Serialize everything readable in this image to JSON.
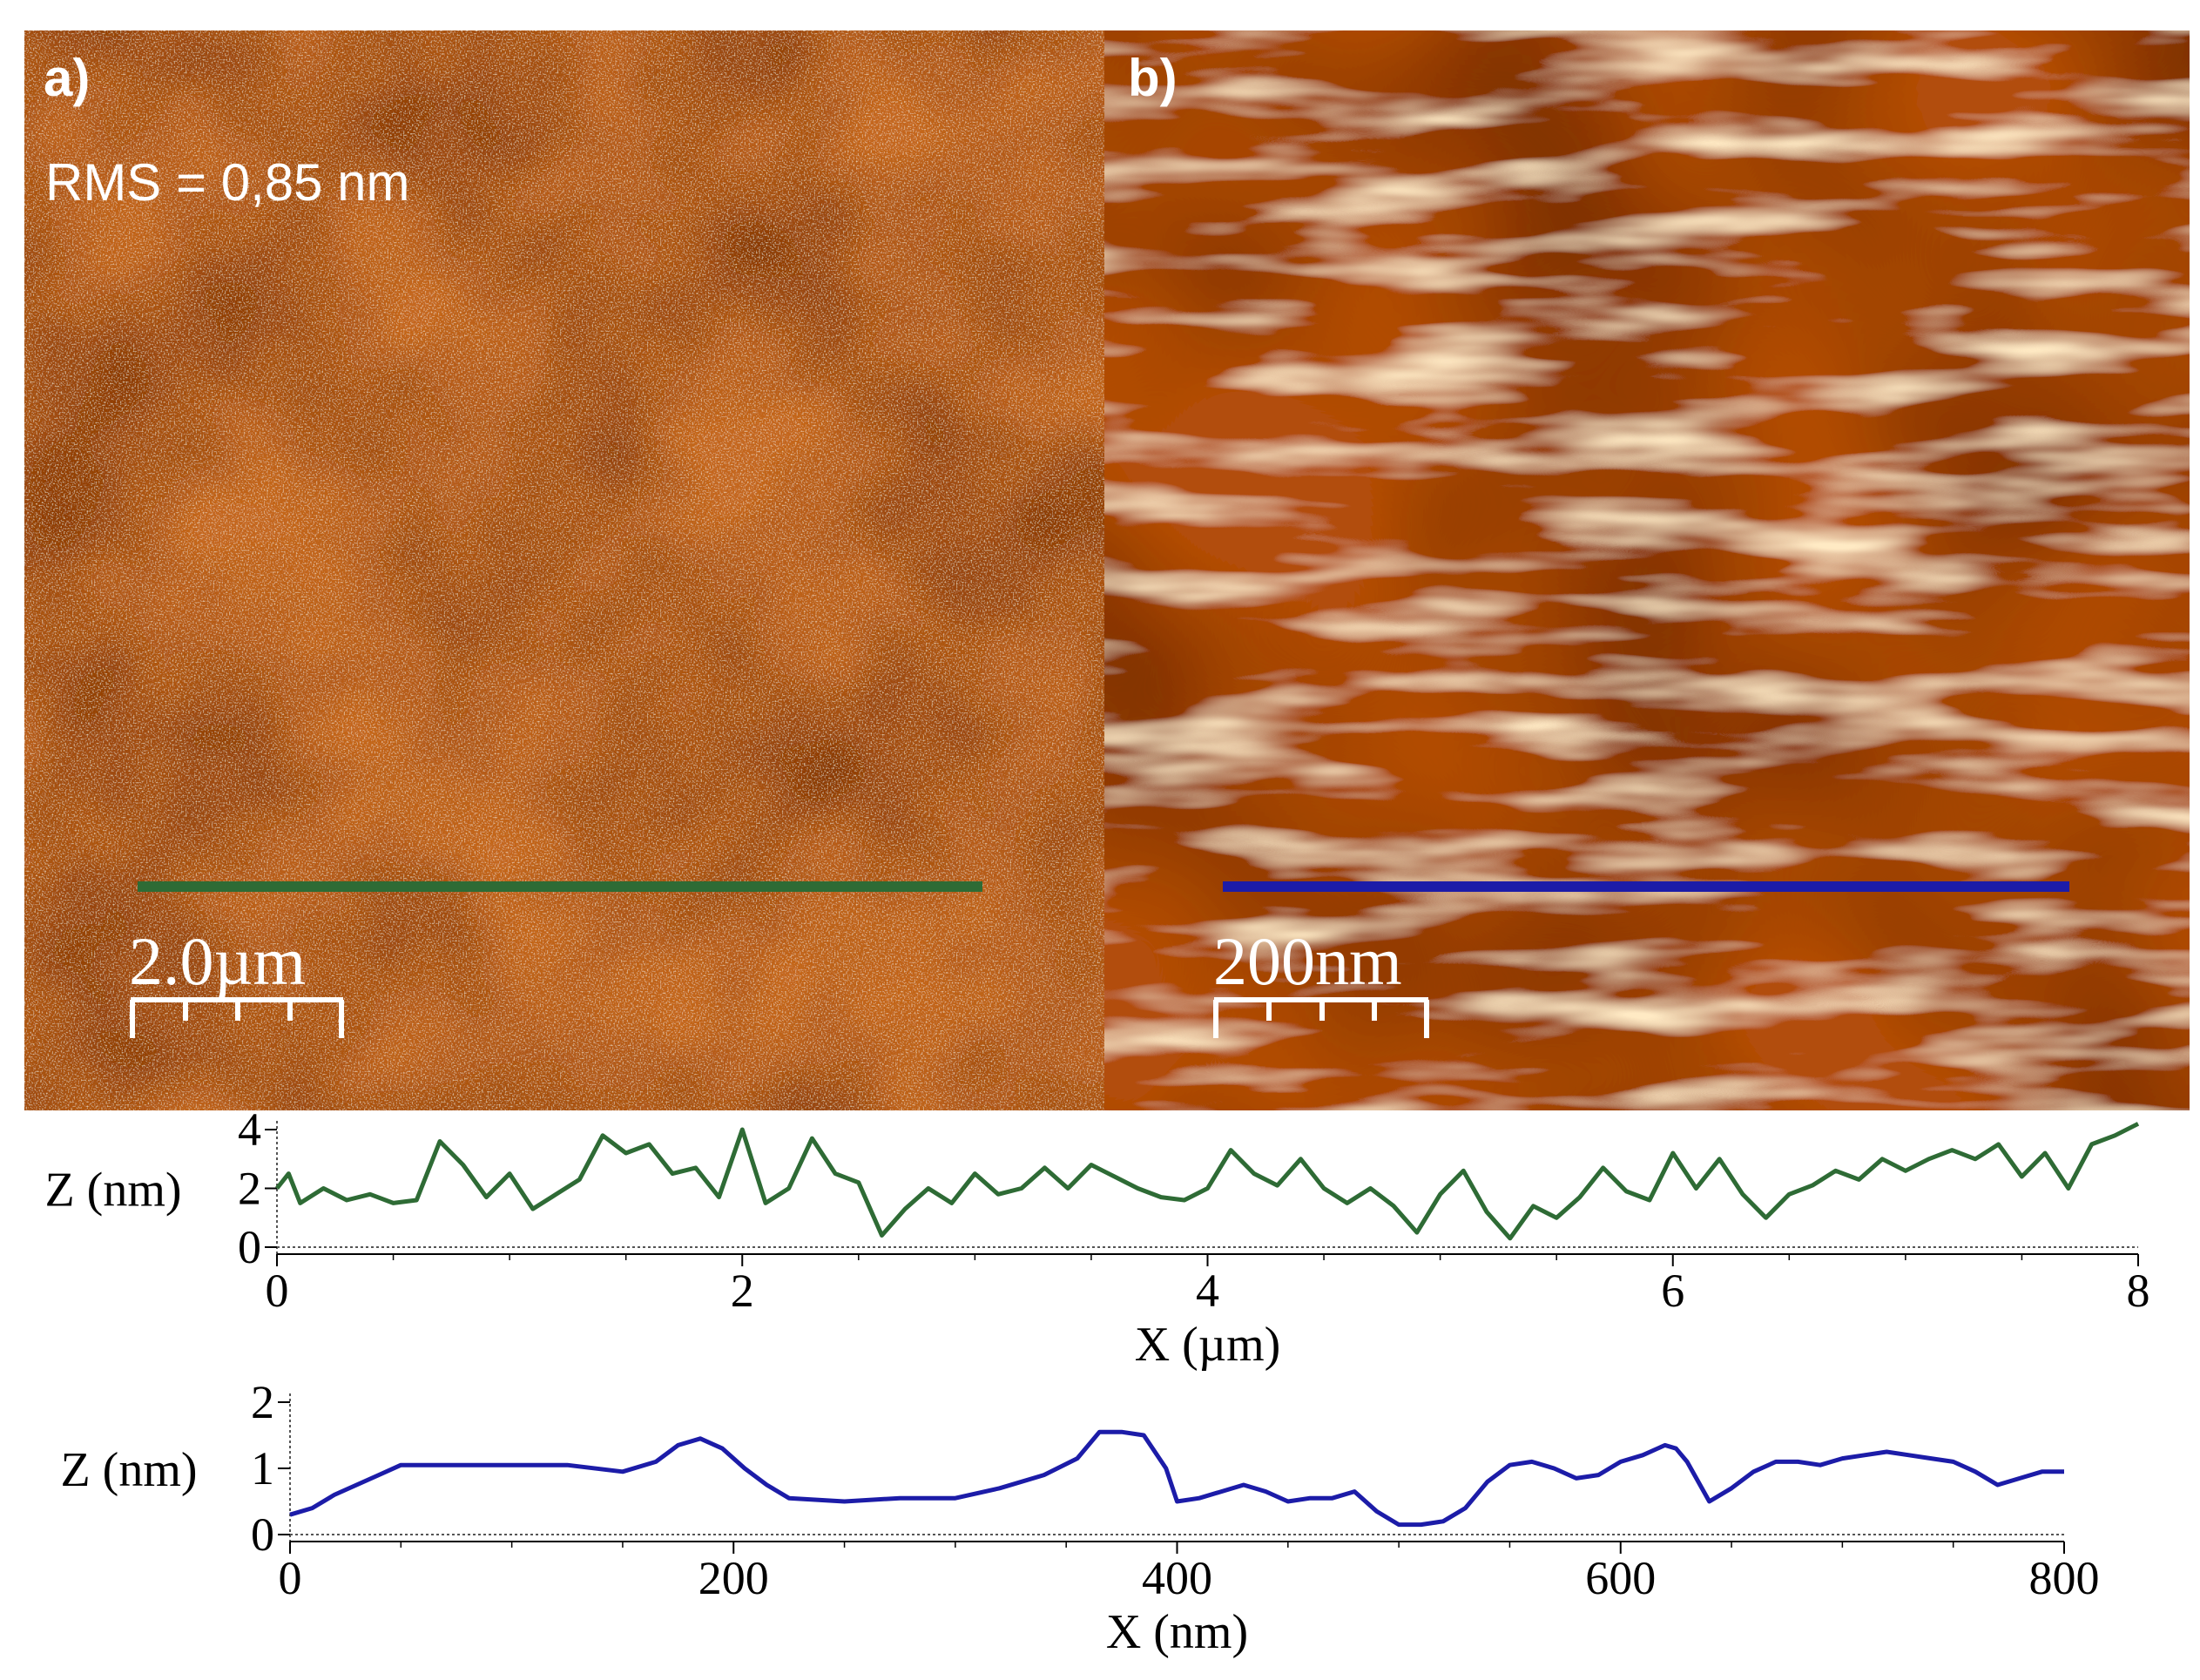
{
  "panels": {
    "a": {
      "label": "a)",
      "rms_text": "RMS = 0,85 nm",
      "scale_bar_label": "2.0µm",
      "profile_line_color": "#2e6b35"
    },
    "b": {
      "label": "b)",
      "scale_bar_label": "200nm",
      "profile_line_color": "#1c1ca8"
    }
  },
  "chart_data": [
    {
      "type": "line",
      "name": "profile-a",
      "xlabel": "X (µm)",
      "ylabel": "Z (nm)",
      "xlim": [
        0,
        8
      ],
      "ylim": [
        0,
        4
      ],
      "xticks": [
        0,
        2,
        4,
        6,
        8
      ],
      "xtick_labels": [
        "0",
        "2",
        "4",
        "6",
        "8"
      ],
      "yticks": [
        0,
        2,
        4
      ],
      "ytick_labels": [
        "0",
        "2",
        "4"
      ],
      "color": "#2e6b35",
      "x": [
        0,
        0.05,
        0.1,
        0.2,
        0.3,
        0.4,
        0.5,
        0.6,
        0.7,
        0.8,
        0.9,
        1.0,
        1.1,
        1.2,
        1.3,
        1.4,
        1.5,
        1.6,
        1.7,
        1.8,
        1.9,
        2.0,
        2.1,
        2.2,
        2.3,
        2.4,
        2.5,
        2.6,
        2.7,
        2.8,
        2.9,
        3.0,
        3.1,
        3.2,
        3.3,
        3.4,
        3.5,
        3.6,
        3.7,
        3.8,
        3.9,
        4.0,
        4.1,
        4.2,
        4.3,
        4.4,
        4.5,
        4.6,
        4.7,
        4.8,
        4.9,
        5.0,
        5.1,
        5.2,
        5.3,
        5.4,
        5.5,
        5.6,
        5.7,
        5.8,
        5.9,
        6.0,
        6.1,
        6.2,
        6.3,
        6.4,
        6.5,
        6.6,
        6.7,
        6.8,
        6.9,
        7.0,
        7.1,
        7.2,
        7.3,
        7.4,
        7.5,
        7.6,
        7.7,
        7.8,
        7.9,
        8.0
      ],
      "y": [
        2.0,
        2.5,
        1.5,
        2.0,
        1.6,
        1.8,
        1.5,
        1.6,
        3.6,
        2.8,
        1.7,
        2.5,
        1.3,
        1.8,
        2.3,
        3.8,
        3.2,
        3.5,
        2.5,
        2.7,
        1.7,
        4.0,
        1.5,
        2.0,
        3.7,
        2.5,
        2.2,
        0.4,
        1.3,
        2.0,
        1.5,
        2.5,
        1.8,
        2.0,
        2.7,
        2.0,
        2.8,
        2.4,
        2.0,
        1.7,
        1.6,
        2.0,
        3.3,
        2.5,
        2.1,
        3.0,
        2.0,
        1.5,
        2.0,
        1.4,
        0.5,
        1.8,
        2.6,
        1.2,
        0.3,
        1.4,
        1.0,
        1.7,
        2.7,
        1.9,
        1.6,
        3.2,
        2.0,
        3.0,
        1.8,
        1.0,
        1.8,
        2.1,
        2.6,
        2.3,
        3.0,
        2.6,
        3.0,
        3.3,
        3.0,
        3.5,
        2.4,
        3.2,
        2.0,
        3.5,
        3.8,
        4.2
      ]
    },
    {
      "type": "line",
      "name": "profile-b",
      "xlabel": "X (nm)",
      "ylabel": "Z (nm)",
      "xlim": [
        0,
        800
      ],
      "ylim": [
        0,
        2
      ],
      "xticks": [
        0,
        200,
        400,
        600,
        800
      ],
      "xtick_labels": [
        "0",
        "200",
        "400",
        "600",
        "800"
      ],
      "yticks": [
        0,
        1,
        2
      ],
      "ytick_labels": [
        "0",
        "1",
        "2"
      ],
      "color": "#1c1ca8",
      "x": [
        0,
        10,
        20,
        30,
        40,
        50,
        75,
        100,
        125,
        150,
        165,
        175,
        185,
        195,
        205,
        215,
        225,
        250,
        275,
        300,
        320,
        340,
        355,
        365,
        375,
        385,
        395,
        400,
        410,
        420,
        430,
        440,
        450,
        460,
        470,
        480,
        490,
        500,
        510,
        520,
        530,
        540,
        550,
        560,
        570,
        580,
        590,
        600,
        610,
        620,
        625,
        630,
        640,
        650,
        660,
        670,
        680,
        690,
        700,
        710,
        720,
        730,
        740,
        750,
        760,
        770,
        780,
        790,
        800
      ],
      "y": [
        0.3,
        0.4,
        0.6,
        0.75,
        0.9,
        1.05,
        1.05,
        1.05,
        1.05,
        0.95,
        1.1,
        1.35,
        1.45,
        1.3,
        1.0,
        0.75,
        0.55,
        0.5,
        0.55,
        0.55,
        0.7,
        0.9,
        1.15,
        1.55,
        1.55,
        1.5,
        1.0,
        0.5,
        0.55,
        0.65,
        0.75,
        0.65,
        0.5,
        0.55,
        0.55,
        0.65,
        0.35,
        0.15,
        0.15,
        0.2,
        0.4,
        0.8,
        1.05,
        1.1,
        1.0,
        0.85,
        0.9,
        1.1,
        1.2,
        1.35,
        1.3,
        1.1,
        0.5,
        0.7,
        0.95,
        1.1,
        1.1,
        1.05,
        1.15,
        1.2,
        1.25,
        1.2,
        1.15,
        1.1,
        0.95,
        0.75,
        0.85,
        0.95,
        0.95
      ]
    }
  ]
}
